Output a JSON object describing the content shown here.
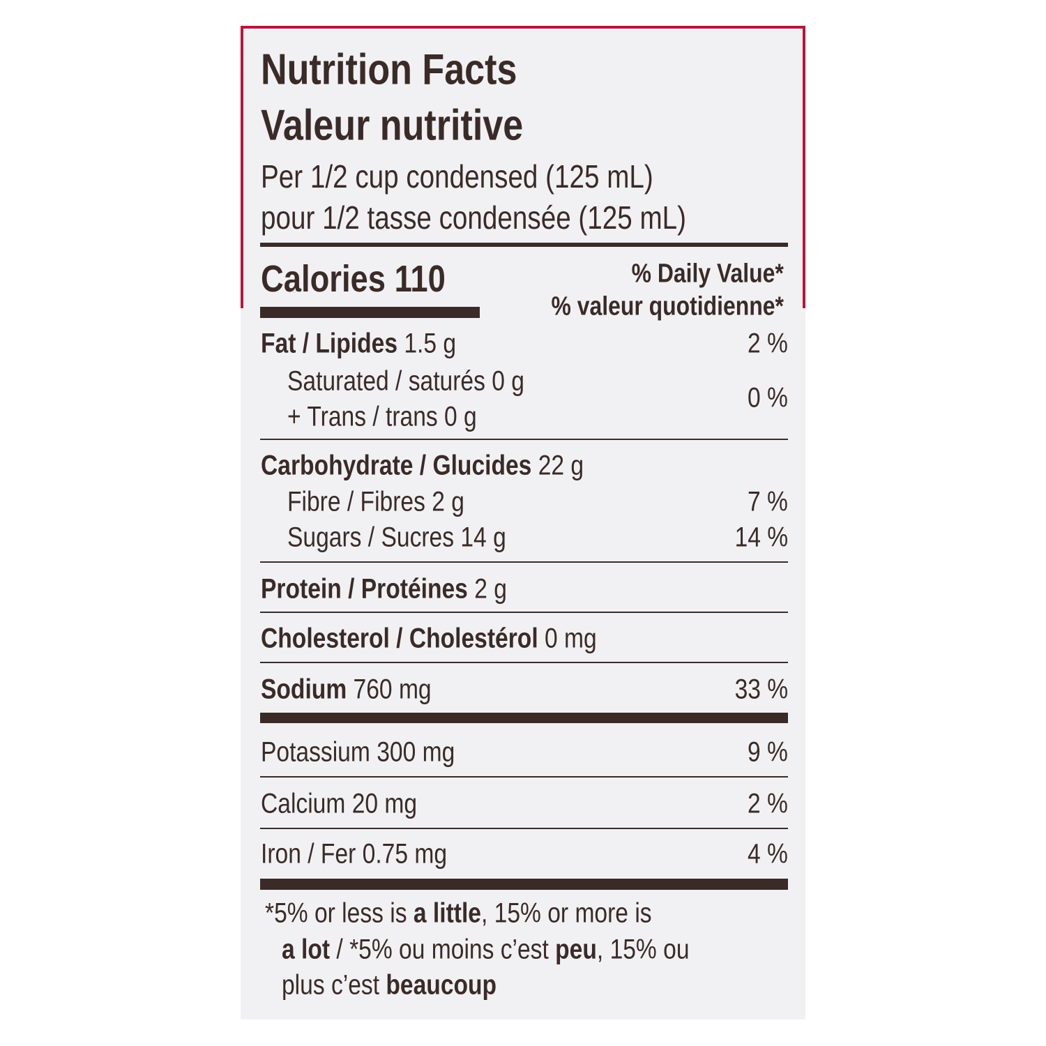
{
  "header": {
    "title_en": "Nutrition Facts",
    "title_fr": "Valeur nutritive",
    "serving_en": "Per 1/2 cup condensed (125 mL)",
    "serving_fr": "pour 1/2 tasse condensée (125 mL)"
  },
  "calories": {
    "label": "Calories",
    "value": "110"
  },
  "daily_value": {
    "en": "% Daily Value*",
    "fr": "% valeur quotidienne*"
  },
  "nutrients": [
    {
      "name": "Fat / Lipides",
      "amount": "1.5 g",
      "dv": "2 %"
    },
    {
      "name": "Saturated / saturés 0 g",
      "name2": "+ Trans / trans 0 g",
      "dv": "0 %"
    },
    {
      "name": "Carbohydrate / Glucides",
      "amount": "22 g"
    },
    {
      "name": "Fibre / Fibres 2 g",
      "dv": "7 %"
    },
    {
      "name": "Sugars / Sucres 14 g",
      "dv": "14 %"
    },
    {
      "name": "Protein / Protéines",
      "amount": "2 g"
    },
    {
      "name": "Cholesterol / Cholestérol",
      "amount": "0 mg"
    },
    {
      "name": "Sodium",
      "amount": "760 mg",
      "dv": "33 %"
    },
    {
      "name": "Potassium 300 mg",
      "dv": "9 %"
    },
    {
      "name": "Calcium 20 mg",
      "dv": "2 %"
    },
    {
      "name": "Iron / Fer 0.75 mg",
      "dv": "4 %"
    }
  ],
  "footnote": [
    [
      "*5% or less is ",
      "a little",
      ", 15% or more is"
    ],
    [
      "a lot",
      " / *5% ou moins c’est ",
      "peu",
      ", 15% ou"
    ],
    [
      "plus c’est ",
      "beaucoup"
    ]
  ]
}
